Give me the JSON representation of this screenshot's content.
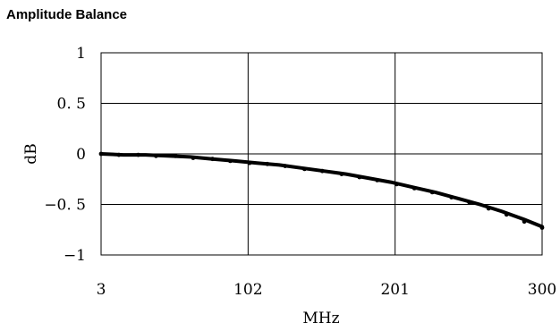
{
  "chart_data": {
    "type": "line",
    "title": "Amplitude Balance",
    "xlabel": "MHz",
    "ylabel": "dB",
    "xlim": [
      3,
      300
    ],
    "ylim": [
      -1,
      1
    ],
    "x_ticks": [
      "3",
      "102",
      "201",
      "300"
    ],
    "y_ticks": [
      "1",
      "0. 5",
      "0",
      "-0. 5",
      "-1"
    ],
    "grid": true,
    "legend": "none",
    "series": [
      {
        "color": "#000000",
        "x": [
          3,
          18,
          33,
          48,
          63,
          78,
          93,
          108,
          123,
          138,
          153,
          168,
          183,
          198,
          213,
          228,
          243,
          258,
          273,
          288,
          300
        ],
        "y": [
          0.0,
          -0.01,
          -0.01,
          -0.02,
          -0.03,
          -0.05,
          -0.07,
          -0.09,
          -0.11,
          -0.14,
          -0.17,
          -0.2,
          -0.24,
          -0.28,
          -0.33,
          -0.38,
          -0.44,
          -0.5,
          -0.57,
          -0.65,
          -0.72
        ]
      }
    ],
    "markers_x": [
      3,
      15,
      28,
      40,
      53,
      65,
      78,
      90,
      103,
      115,
      127,
      140,
      152,
      165,
      177,
      189,
      202,
      214,
      226,
      239,
      251,
      264,
      276,
      288,
      300
    ],
    "markers_y": [
      0.0,
      -0.01,
      -0.01,
      -0.02,
      -0.02,
      -0.04,
      -0.05,
      -0.07,
      -0.09,
      -0.1,
      -0.12,
      -0.15,
      -0.17,
      -0.2,
      -0.23,
      -0.26,
      -0.3,
      -0.34,
      -0.38,
      -0.43,
      -0.48,
      -0.54,
      -0.6,
      -0.67,
      -0.73
    ]
  }
}
